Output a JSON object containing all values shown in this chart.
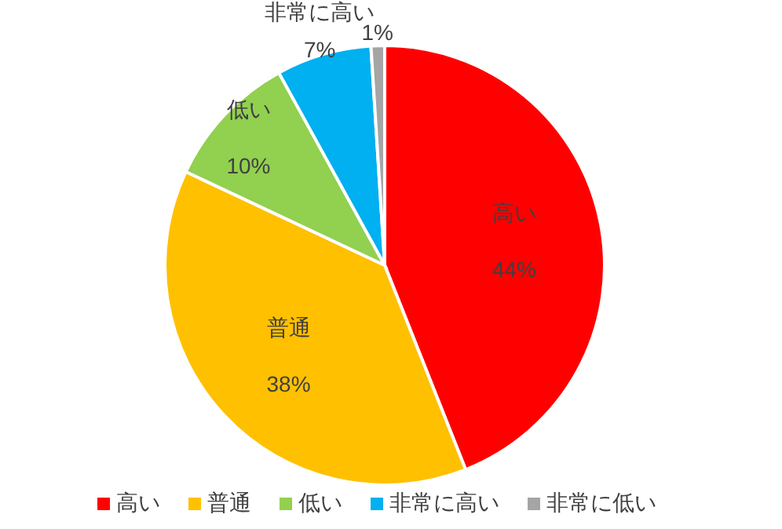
{
  "chart_data": {
    "type": "pie",
    "categories": [
      "高い",
      "普通",
      "低い",
      "非常に高い",
      "非常に低い"
    ],
    "values": [
      44,
      38,
      10,
      7,
      1
    ],
    "colors": [
      "#ff0000",
      "#ffc000",
      "#92d050",
      "#00b0f0",
      "#a5a5a5"
    ],
    "value_labels": [
      "高い\n44%",
      "普通\n38%",
      "低い\n10%",
      "非常に高い\n7%",
      "1%"
    ],
    "legend": "bottom"
  }
}
